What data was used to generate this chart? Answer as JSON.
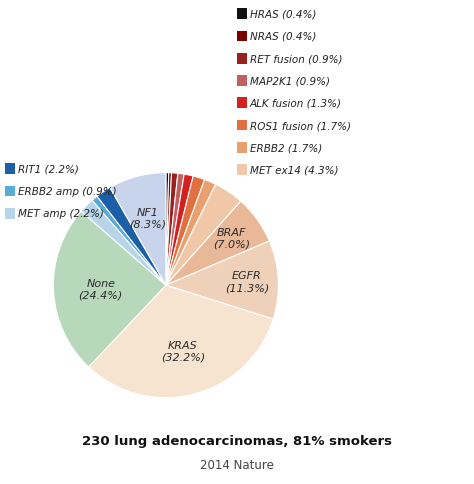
{
  "slices": [
    {
      "label": "HRAS",
      "pct": 0.4,
      "color": "#111111"
    },
    {
      "label": "NRAS",
      "pct": 0.4,
      "color": "#7a0000"
    },
    {
      "label": "RET fusion",
      "pct": 0.9,
      "color": "#9b2020"
    },
    {
      "label": "MAP2K1",
      "pct": 0.9,
      "color": "#c06060"
    },
    {
      "label": "ALK fusion",
      "pct": 1.3,
      "color": "#d42020"
    },
    {
      "label": "ROS1 fusion",
      "pct": 1.7,
      "color": "#e07040"
    },
    {
      "label": "ERBB2",
      "pct": 1.7,
      "color": "#e8a070"
    },
    {
      "label": "MET ex14",
      "pct": 4.3,
      "color": "#f0c8a8"
    },
    {
      "label": "BRAF",
      "pct": 7.0,
      "color": "#e8b898"
    },
    {
      "label": "EGFR",
      "pct": 11.3,
      "color": "#efd0b8"
    },
    {
      "label": "KRAS",
      "pct": 32.2,
      "color": "#f7e4d0"
    },
    {
      "label": "None",
      "pct": 24.4,
      "color": "#b8d8bc"
    },
    {
      "label": "MET amp",
      "pct": 2.2,
      "color": "#b8d4e8"
    },
    {
      "label": "ERBB2 amp",
      "pct": 0.9,
      "color": "#5aaad8"
    },
    {
      "label": "RIT1",
      "pct": 2.2,
      "color": "#1a5fa8"
    },
    {
      "label": "NF1",
      "pct": 8.3,
      "color": "#c8d4ec"
    }
  ],
  "legend_right": [
    {
      "label": "HRAS (0.4%)",
      "color": "#111111"
    },
    {
      "label": "NRAS (0.4%)",
      "color": "#7a0000"
    },
    {
      "label": "RET fusion (0.9%)",
      "color": "#9b2020"
    },
    {
      "label": "MAP2K1 (0.9%)",
      "color": "#c06060"
    },
    {
      "label": "ALK fusion (1.3%)",
      "color": "#d42020"
    },
    {
      "label": "ROS1 fusion (1.7%)",
      "color": "#e07040"
    },
    {
      "label": "ERBB2 (1.7%)",
      "color": "#e8a070"
    },
    {
      "label": "MET ex14 (4.3%)",
      "color": "#f0c8a8"
    }
  ],
  "legend_left": [
    {
      "label": "RIT1 (2.2%)",
      "color": "#1a5fa8"
    },
    {
      "label": "ERBB2 amp (0.9%)",
      "color": "#5aaad8"
    },
    {
      "label": "MET amp (2.2%)",
      "color": "#b8d4e8"
    }
  ],
  "startangle": 90,
  "title": "230 lung adenocarcinomas, 81% smokers",
  "subtitle": "2014 Nature",
  "bg_color": "#ffffff"
}
